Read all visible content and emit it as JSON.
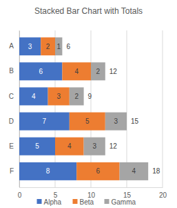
{
  "chart_data": {
    "type": "bar",
    "title": "Stacked Bar Chart with Totals",
    "orientation": "horizontal",
    "stacked": true,
    "data_labels": true,
    "grid": true,
    "legend": "bottom",
    "categories": [
      "A",
      "B",
      "C",
      "D",
      "E",
      "F"
    ],
    "series": [
      {
        "name": "Alpha",
        "color": "#4472c4",
        "values": [
          3,
          6,
          4,
          7,
          5,
          8
        ]
      },
      {
        "name": "Beta",
        "color": "#ed7d31",
        "values": [
          2,
          4,
          3,
          5,
          4,
          6
        ]
      },
      {
        "name": "Gamma",
        "color": "#a5a5a5",
        "values": [
          1,
          2,
          2,
          3,
          3,
          4
        ]
      }
    ],
    "totals": [
      6,
      12,
      9,
      15,
      12,
      18
    ],
    "xlim": [
      0,
      20
    ],
    "xticks": [
      0,
      5,
      10,
      15,
      20
    ]
  }
}
